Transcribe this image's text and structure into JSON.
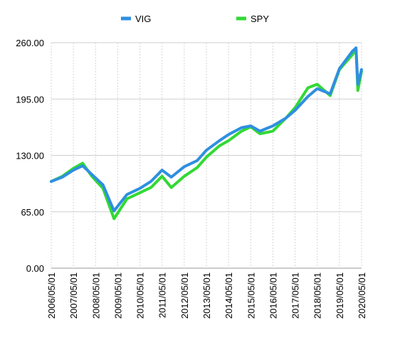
{
  "chart_data": {
    "type": "line",
    "title": "",
    "xlabel": "",
    "ylabel": "",
    "ylim": [
      0,
      260
    ],
    "y_ticks": [
      "0.00",
      "65.00",
      "130.00",
      "195.00",
      "260.00"
    ],
    "x_ticks": [
      "2006/05/01",
      "2007/05/01",
      "2008/05/01",
      "2009/05/01",
      "2010/05/01",
      "2011/05/01",
      "2012/05/01",
      "2013/05/01",
      "2014/05/01",
      "2015/05/01",
      "2016/05/01",
      "2017/05/01",
      "2018/05/01",
      "2019/05/01",
      "2020/05/01"
    ],
    "grid": true,
    "legend_position": "top",
    "series": [
      {
        "name": "VIG",
        "color": "#2f8fe0",
        "points": [
          [
            "2006/05/01",
            100
          ],
          [
            "2006/11/01",
            105
          ],
          [
            "2007/05/01",
            113
          ],
          [
            "2007/10/01",
            118
          ],
          [
            "2008/03/01",
            108
          ],
          [
            "2008/09/01",
            96
          ],
          [
            "2009/03/01",
            66
          ],
          [
            "2009/10/01",
            85
          ],
          [
            "2010/05/01",
            92
          ],
          [
            "2010/11/01",
            100
          ],
          [
            "2011/05/01",
            113
          ],
          [
            "2011/10/01",
            105
          ],
          [
            "2012/05/01",
            117
          ],
          [
            "2012/12/01",
            124
          ],
          [
            "2013/05/01",
            136
          ],
          [
            "2013/12/01",
            147
          ],
          [
            "2014/05/01",
            154
          ],
          [
            "2014/12/01",
            162
          ],
          [
            "2015/05/01",
            164
          ],
          [
            "2015/10/01",
            158
          ],
          [
            "2016/05/01",
            164
          ],
          [
            "2016/12/01",
            173
          ],
          [
            "2017/05/01",
            182
          ],
          [
            "2017/12/01",
            198
          ],
          [
            "2018/05/01",
            207
          ],
          [
            "2018/12/01",
            201
          ],
          [
            "2019/05/01",
            230
          ],
          [
            "2019/12/01",
            250
          ],
          [
            "2020/02/01",
            254
          ],
          [
            "2020/03/01",
            212
          ],
          [
            "2020/05/01",
            229
          ]
        ]
      },
      {
        "name": "SPY",
        "color": "#32d934",
        "points": [
          [
            "2006/05/01",
            100
          ],
          [
            "2006/11/01",
            106
          ],
          [
            "2007/05/01",
            115
          ],
          [
            "2007/10/01",
            121
          ],
          [
            "2008/03/01",
            106
          ],
          [
            "2008/09/01",
            92
          ],
          [
            "2009/03/01",
            57
          ],
          [
            "2009/10/01",
            80
          ],
          [
            "2010/05/01",
            87
          ],
          [
            "2010/11/01",
            93
          ],
          [
            "2011/05/01",
            106
          ],
          [
            "2011/10/01",
            93
          ],
          [
            "2012/05/01",
            106
          ],
          [
            "2012/12/01",
            116
          ],
          [
            "2013/05/01",
            128
          ],
          [
            "2013/12/01",
            141
          ],
          [
            "2014/05/01",
            147
          ],
          [
            "2014/12/01",
            158
          ],
          [
            "2015/05/01",
            163
          ],
          [
            "2015/10/01",
            155
          ],
          [
            "2016/05/01",
            158
          ],
          [
            "2016/12/01",
            173
          ],
          [
            "2017/05/01",
            185
          ],
          [
            "2017/12/01",
            208
          ],
          [
            "2018/05/01",
            212
          ],
          [
            "2018/12/01",
            199
          ],
          [
            "2019/05/01",
            229
          ],
          [
            "2019/12/01",
            246
          ],
          [
            "2020/02/01",
            252
          ],
          [
            "2020/03/01",
            205
          ],
          [
            "2020/05/01",
            227
          ]
        ]
      }
    ]
  }
}
